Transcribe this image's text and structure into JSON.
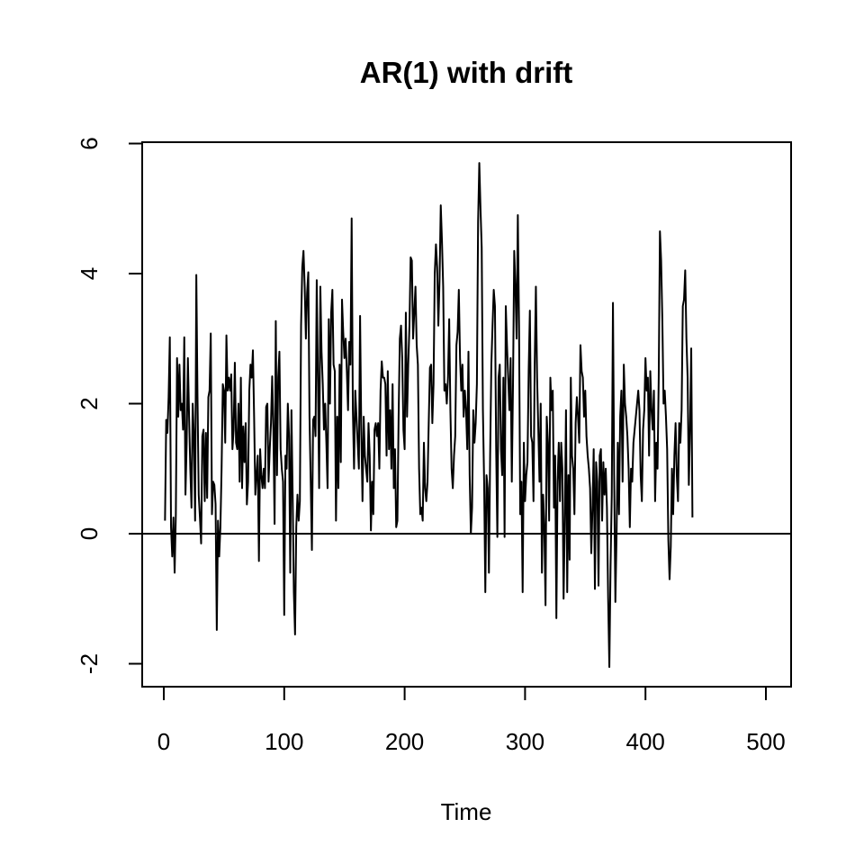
{
  "chart_data": {
    "type": "line",
    "title": "AR(1) with drift",
    "xlabel": "Time",
    "ylabel": "",
    "xlim": [
      0,
      500
    ],
    "ylim": [
      -2,
      6
    ],
    "x_ticks": [
      0,
      100,
      200,
      300,
      400,
      500
    ],
    "y_ticks": [
      -2,
      0,
      2,
      4,
      6
    ],
    "x_tick_labels": [
      "0",
      "100",
      "200",
      "300",
      "400",
      "500"
    ],
    "y_tick_labels": [
      "-2",
      "0",
      "2",
      "4",
      "6"
    ],
    "reference_line": {
      "y": 0
    },
    "grid": false,
    "line_color": "#000000",
    "x_start": 1,
    "x_step": 1,
    "series": [
      {
        "values": [
          0.2,
          1.75,
          1.55,
          2.1,
          3.02,
          0.1,
          -0.35,
          0.25,
          -0.6,
          0.3,
          2.7,
          1.8,
          2.6,
          1.9,
          2.0,
          1.6,
          3.02,
          0.6,
          1.4,
          2.7,
          1.8,
          1.0,
          0.4,
          2.0,
          1.5,
          0.2,
          3.98,
          2.1,
          0.6,
          0.25,
          -0.15,
          1.5,
          1.6,
          0.5,
          1.55,
          0.55,
          2.1,
          2.2,
          3.08,
          0.3,
          0.8,
          0.75,
          0.45,
          -1.48,
          0.2,
          -0.35,
          0.1,
          1.0,
          2.3,
          2.2,
          1.4,
          3.05,
          2.2,
          2.4,
          2.2,
          2.45,
          1.3,
          1.6,
          2.63,
          1.4,
          1.3,
          2.0,
          0.8,
          2.4,
          0.7,
          1.65,
          1.1,
          1.7,
          0.45,
          0.8,
          2.2,
          2.6,
          2.4,
          2.82,
          1.8,
          0.6,
          0.9,
          1.2,
          -0.42,
          1.3,
          0.9,
          0.7,
          1.0,
          0.7,
          1.95,
          2.0,
          0.8,
          1.3,
          1.7,
          2.42,
          1.6,
          0.15,
          3.27,
          0.9,
          2.4,
          2.8,
          1.3,
          1.0,
          0.8,
          -1.25,
          1.2,
          1.0,
          2.0,
          1.5,
          -0.6,
          1.9,
          0.6,
          -0.9,
          -1.55,
          0.1,
          0.6,
          0.2,
          0.5,
          3.2,
          4.1,
          4.35,
          3.8,
          3.0,
          3.7,
          4.02,
          1.8,
          0.8,
          -0.25,
          1.75,
          1.8,
          1.5,
          3.9,
          2.4,
          0.7,
          3.8,
          2.8,
          2.3,
          1.6,
          2.0,
          1.4,
          0.7,
          3.3,
          2.0,
          3.4,
          3.75,
          2.6,
          2.5,
          0.2,
          1.8,
          0.7,
          2.6,
          1.1,
          3.6,
          3.1,
          2.7,
          3.0,
          2.5,
          1.9,
          2.95,
          2.6,
          4.85,
          1.9,
          1.0,
          2.2,
          1.8,
          1.4,
          1.0,
          3.35,
          1.6,
          0.5,
          1.8,
          1.2,
          1.0,
          0.8,
          1.7,
          1.2,
          0.05,
          0.8,
          0.3,
          1.6,
          1.7,
          1.5,
          1.7,
          1.0,
          2.2,
          2.65,
          2.4,
          2.4,
          2.3,
          1.2,
          2.5,
          1.3,
          1.9,
          1.0,
          2.3,
          0.7,
          1.3,
          0.1,
          0.2,
          1.8,
          3.0,
          3.2,
          2.7,
          1.6,
          1.3,
          3.4,
          1.8,
          2.6,
          3.2,
          4.25,
          4.2,
          3.0,
          3.4,
          3.8,
          2.9,
          2.6,
          1.0,
          0.3,
          0.4,
          0.2,
          1.4,
          0.7,
          0.5,
          0.8,
          1.7,
          2.55,
          2.6,
          1.7,
          2.3,
          4.0,
          4.45,
          4.1,
          3.2,
          3.9,
          5.05,
          4.5,
          3.8,
          2.2,
          2.3,
          2.0,
          2.4,
          3.3,
          1.9,
          1.0,
          0.7,
          1.2,
          1.5,
          2.9,
          3.1,
          3.75,
          2.7,
          2.2,
          2.6,
          1.8,
          2.2,
          1.9,
          1.3,
          2.8,
          0.9,
          0.0,
          0.4,
          1.9,
          1.4,
          1.7,
          2.3,
          4.8,
          5.7,
          5.0,
          4.4,
          1.9,
          0.8,
          -0.9,
          0.9,
          0.7,
          -0.6,
          1.2,
          2.6,
          3.2,
          3.75,
          3.5,
          1.3,
          -0.05,
          2.4,
          2.6,
          1.3,
          0.9,
          2.4,
          -0.05,
          3.5,
          2.9,
          2.4,
          1.9,
          2.7,
          0.8,
          2.3,
          4.35,
          3.8,
          3.0,
          4.9,
          3.2,
          0.3,
          0.8,
          -0.9,
          1.4,
          0.5,
          0.9,
          1.1,
          2.5,
          3.43,
          1.5,
          1.4,
          0.5,
          2.6,
          3.8,
          2.4,
          1.6,
          0.8,
          2.0,
          -0.6,
          0.6,
          0.1,
          -1.1,
          1.8,
          1.4,
          0.2,
          2.4,
          1.9,
          2.2,
          0.4,
          1.2,
          -1.3,
          0.8,
          1.4,
          0.5,
          1.4,
          1.0,
          -1.0,
          0.2,
          1.9,
          -0.9,
          0.9,
          -0.4,
          2.4,
          1.2,
          1.0,
          0.3,
          1.7,
          2.1,
          1.8,
          1.4,
          2.9,
          2.5,
          2.4,
          1.8,
          2.2,
          1.5,
          1.2,
          1.0,
          0.7,
          -0.3,
          0.4,
          1.3,
          -0.85,
          1.1,
          0.8,
          -0.8,
          1.2,
          1.3,
          0.2,
          1.1,
          0.6,
          1.0,
          0.4,
          -1.0,
          -2.05,
          -0.5,
          0.6,
          3.55,
          0.9,
          -1.05,
          0.0,
          1.4,
          0.3,
          1.8,
          2.2,
          0.8,
          2.6,
          2.0,
          1.8,
          1.5,
          1.0,
          0.1,
          1.0,
          0.8,
          1.4,
          1.6,
          1.8,
          2.0,
          2.2,
          1.9,
          0.9,
          0.5,
          1.6,
          1.9,
          2.7,
          2.2,
          2.4,
          1.2,
          2.5,
          1.9,
          1.6,
          2.2,
          0.5,
          1.4,
          1.0,
          2.4,
          4.65,
          4.2,
          3.3,
          2.0,
          2.2,
          1.8,
          1.3,
          -0.1,
          -0.7,
          -0.2,
          1.0,
          0.3,
          1.2,
          1.7,
          0.9,
          0.5,
          1.7,
          1.4,
          1.9,
          3.5,
          3.6,
          4.05,
          3.0,
          2.4,
          0.75,
          1.6,
          2.85,
          0.25
        ]
      }
    ]
  }
}
